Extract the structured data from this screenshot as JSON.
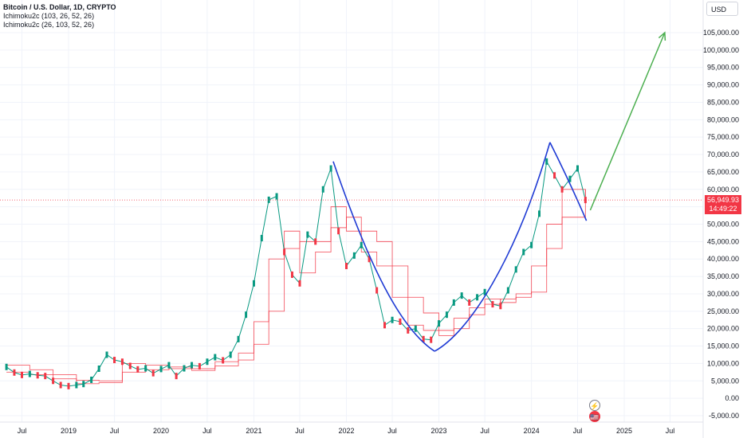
{
  "header": {
    "symbol": "Bitcoin / U.S. Dollar, 1D, CRYPTO",
    "indicator_1": "Ichimoku2c (103, 26, 52, 26)",
    "indicator_2": "Ichimoku2c (26, 103, 52, 26)"
  },
  "currency": "USD",
  "last_price": {
    "price": "56,949.93",
    "countdown": "14:49:22",
    "value": 56949.93,
    "color": "#f23645"
  },
  "events": {
    "lightning": "⚡",
    "flag": "🇺🇸"
  },
  "colors": {
    "ichimoku": "#f23645",
    "pattern": "#1f3bd4",
    "arrow": "#4caf50",
    "grid": "#f0f3fa"
  },
  "chart_data": {
    "type": "line",
    "x_unit": "date",
    "ylim": [
      -5000,
      110000
    ],
    "xlim": [
      "2018-05-01",
      "2025-09-01"
    ],
    "y_ticks": [
      "105,000.00",
      "100,000.00",
      "95,000.00",
      "90,000.00",
      "85,000.00",
      "80,000.00",
      "75,000.00",
      "70,000.00",
      "65,000.00",
      "60,000.00",
      "55,000.00",
      "50,000.00",
      "45,000.00",
      "40,000.00",
      "35,000.00",
      "30,000.00",
      "25,000.00",
      "20,000.00",
      "15,000.00",
      "10,000.00",
      "5,000.00",
      "0.00",
      "-5,000.00"
    ],
    "x_ticks": [
      {
        "label": "Jul",
        "date": "2018-07-01"
      },
      {
        "label": "2019",
        "date": "2019-01-01"
      },
      {
        "label": "Jul",
        "date": "2019-07-01"
      },
      {
        "label": "2020",
        "date": "2020-01-01"
      },
      {
        "label": "Jul",
        "date": "2020-07-01"
      },
      {
        "label": "2021",
        "date": "2021-01-01"
      },
      {
        "label": "Jul",
        "date": "2021-07-01"
      },
      {
        "label": "2022",
        "date": "2022-01-01"
      },
      {
        "label": "Jul",
        "date": "2022-07-01"
      },
      {
        "label": "2023",
        "date": "2023-01-01"
      },
      {
        "label": "Jul",
        "date": "2023-07-01"
      },
      {
        "label": "2024",
        "date": "2024-01-01"
      },
      {
        "label": "Jul",
        "date": "2024-07-01"
      },
      {
        "label": "2025",
        "date": "2025-01-01"
      },
      {
        "label": "Jul",
        "date": "2025-07-01"
      }
    ],
    "series": [
      {
        "name": "Bitcoin / U.S. Dollar",
        "x": [
          "2018-05-01",
          "2018-06-01",
          "2018-07-01",
          "2018-08-01",
          "2018-09-01",
          "2018-10-01",
          "2018-11-01",
          "2018-12-01",
          "2019-01-01",
          "2019-02-01",
          "2019-03-01",
          "2019-04-01",
          "2019-05-01",
          "2019-06-01",
          "2019-07-01",
          "2019-08-01",
          "2019-09-01",
          "2019-10-01",
          "2019-11-01",
          "2019-12-01",
          "2020-01-01",
          "2020-02-01",
          "2020-03-01",
          "2020-04-01",
          "2020-05-01",
          "2020-06-01",
          "2020-07-01",
          "2020-08-01",
          "2020-09-01",
          "2020-10-01",
          "2020-11-01",
          "2020-12-01",
          "2021-01-01",
          "2021-02-01",
          "2021-03-01",
          "2021-04-01",
          "2021-05-01",
          "2021-06-01",
          "2021-07-01",
          "2021-08-01",
          "2021-09-01",
          "2021-10-01",
          "2021-11-01",
          "2021-12-01",
          "2022-01-01",
          "2022-02-01",
          "2022-03-01",
          "2022-04-01",
          "2022-05-01",
          "2022-06-01",
          "2022-07-01",
          "2022-08-01",
          "2022-09-01",
          "2022-10-01",
          "2022-11-01",
          "2022-12-01",
          "2023-01-01",
          "2023-02-01",
          "2023-03-01",
          "2023-04-01",
          "2023-05-01",
          "2023-06-01",
          "2023-07-01",
          "2023-08-01",
          "2023-09-01",
          "2023-10-01",
          "2023-11-01",
          "2023-12-01",
          "2024-01-01",
          "2024-02-01",
          "2024-03-01",
          "2024-04-01",
          "2024-05-01",
          "2024-06-01",
          "2024-07-01",
          "2024-08-01"
        ],
        "y": [
          9000,
          7400,
          6700,
          7000,
          6600,
          6400,
          5000,
          3800,
          3500,
          3800,
          4100,
          5300,
          8500,
          12500,
          11000,
          10500,
          9300,
          8300,
          8600,
          7200,
          8400,
          9500,
          6400,
          8600,
          9500,
          9200,
          10500,
          11800,
          10900,
          12500,
          17000,
          24000,
          33000,
          46000,
          57000,
          58000,
          42000,
          35500,
          33000,
          47000,
          45000,
          60000,
          66000,
          48000,
          38000,
          41000,
          44000,
          40000,
          31000,
          21000,
          22500,
          22000,
          19500,
          20000,
          17000,
          16800,
          21500,
          24000,
          27500,
          29500,
          27500,
          29000,
          30500,
          27000,
          26500,
          31000,
          37000,
          42000,
          44000,
          53000,
          68000,
          64000,
          60000,
          63000,
          66000,
          56950
        ]
      }
    ],
    "ichimoku_lines": [
      {
        "name": "Ichimoku2c (103, 26, 52, 26)",
        "x": [
          "2018-05-01",
          "2018-08-01",
          "2018-11-01",
          "2019-02-01",
          "2019-05-01",
          "2019-08-01",
          "2019-11-01",
          "2020-02-01",
          "2020-05-01",
          "2020-08-01",
          "2020-11-01",
          "2021-01-01",
          "2021-03-01",
          "2021-05-01",
          "2021-07-01",
          "2021-09-01",
          "2021-11-01",
          "2022-01-01",
          "2022-03-01",
          "2022-05-01",
          "2022-07-01",
          "2022-09-01",
          "2022-11-01",
          "2023-01-01",
          "2023-03-01",
          "2023-05-01",
          "2023-07-01",
          "2023-09-01",
          "2023-11-01",
          "2024-01-01",
          "2024-03-01",
          "2024-05-01",
          "2024-08-01"
        ],
        "y": [
          9500,
          8200,
          6800,
          5200,
          5000,
          7500,
          9500,
          8500,
          8500,
          9300,
          11000,
          15500,
          25000,
          43000,
          45000,
          45000,
          49000,
          52000,
          48000,
          45000,
          38000,
          29000,
          24500,
          19500,
          20000,
          24000,
          27000,
          28500,
          29000,
          30500,
          43000,
          52000,
          60000
        ]
      },
      {
        "name": "Ichimoku2c (26, 103, 52, 26)",
        "x": [
          "2018-05-01",
          "2018-08-01",
          "2018-11-01",
          "2019-02-01",
          "2019-05-01",
          "2019-08-01",
          "2019-11-01",
          "2020-02-01",
          "2020-05-01",
          "2020-08-01",
          "2020-11-01",
          "2021-01-01",
          "2021-03-01",
          "2021-05-01",
          "2021-07-01",
          "2021-09-01",
          "2021-11-01",
          "2022-01-01",
          "2022-03-01",
          "2022-05-01",
          "2022-07-01",
          "2022-09-01",
          "2022-11-01",
          "2023-01-01",
          "2023-03-01",
          "2023-05-01",
          "2023-07-01",
          "2023-09-01",
          "2023-11-01",
          "2024-01-01",
          "2024-03-01",
          "2024-05-01",
          "2024-08-01"
        ],
        "y": [
          7500,
          6800,
          5600,
          4200,
          4500,
          10000,
          8200,
          9000,
          8000,
          10500,
          13000,
          22000,
          40000,
          48000,
          36000,
          42000,
          55000,
          48000,
          42000,
          38000,
          29000,
          21000,
          19500,
          18000,
          23000,
          26000,
          28500,
          27500,
          30000,
          38000,
          50000,
          60000,
          58000
        ]
      }
    ],
    "annotations": {
      "arc_1": {
        "x": [
          "2021-11-10",
          "2022-04-01",
          "2022-08-01",
          "2022-12-15"
        ],
        "y": [
          68000,
          38000,
          20000,
          13500
        ]
      },
      "arc_2": {
        "x": [
          "2022-12-15",
          "2023-05-01",
          "2023-11-01",
          "2024-03-14"
        ],
        "y": [
          13500,
          19000,
          40000,
          73500
        ]
      },
      "arc_3": {
        "x": [
          "2024-03-14",
          "2024-06-01",
          "2024-08-05"
        ],
        "y": [
          73500,
          62000,
          51000
        ]
      },
      "arrow": {
        "x": [
          "2024-08-20",
          "2025-06-10"
        ],
        "y": [
          54000,
          105000
        ]
      },
      "last_price_line": 56949.93
    }
  }
}
